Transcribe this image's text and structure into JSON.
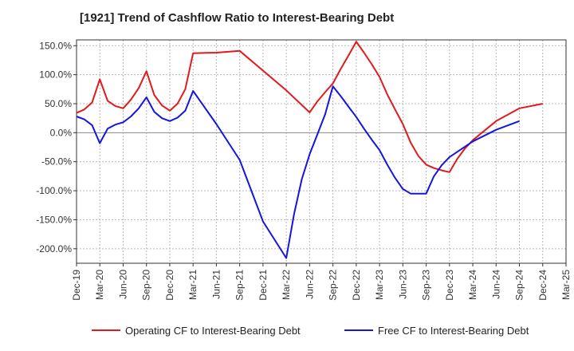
{
  "chart_data": {
    "type": "line",
    "title": "[1921]  Trend of Cashflow Ratio to Interest-Bearing Debt",
    "xlabel": "",
    "ylabel": "",
    "x_tick_labels": [
      "Dec-19",
      "Mar-20",
      "Jun-20",
      "Sep-20",
      "Dec-20",
      "Mar-21",
      "Jun-21",
      "Sep-21",
      "Dec-21",
      "Mar-22",
      "Jun-22",
      "Sep-22",
      "Dec-22",
      "Mar-23",
      "Jun-23",
      "Sep-23",
      "Dec-23",
      "Mar-24",
      "Jun-24",
      "Sep-24",
      "Dec-24",
      "Mar-25"
    ],
    "y_tick_labels": [
      "150.0%",
      "100.0%",
      "50.0%",
      "0.0%",
      "-50.0%",
      "-100.0%",
      "-150.0%",
      "-200.0%"
    ],
    "y_ticks": [
      150,
      100,
      50,
      0,
      -50,
      -100,
      -150,
      -200
    ],
    "ylim": [
      -225,
      160
    ],
    "x_range": [
      "2019-12",
      "2025-03"
    ],
    "grid": true,
    "legend_position": "bottom",
    "series": [
      {
        "name": "Operating CF to Interest-Bearing Debt",
        "color": "#e31a1c",
        "points": [
          [
            "2019-12",
            34
          ],
          [
            "2020-01",
            40
          ],
          [
            "2020-02",
            52
          ],
          [
            "2020-03",
            92
          ],
          [
            "2020-04",
            55
          ],
          [
            "2020-05",
            46
          ],
          [
            "2020-06",
            42
          ],
          [
            "2020-07",
            57
          ],
          [
            "2020-08",
            77
          ],
          [
            "2020-09",
            106
          ],
          [
            "2020-10",
            65
          ],
          [
            "2020-11",
            47
          ],
          [
            "2020-12",
            38
          ],
          [
            "2021-01",
            50
          ],
          [
            "2021-02",
            75
          ],
          [
            "2021-03",
            137
          ],
          [
            "2021-06",
            138
          ],
          [
            "2021-09",
            141
          ],
          [
            "2021-12",
            107
          ],
          [
            "2022-03",
            73
          ],
          [
            "2022-06",
            35
          ],
          [
            "2022-07",
            54
          ],
          [
            "2022-08",
            70
          ],
          [
            "2022-09",
            85
          ],
          [
            "2022-10",
            110
          ],
          [
            "2022-11",
            133
          ],
          [
            "2022-12",
            157
          ],
          [
            "2023-01",
            138
          ],
          [
            "2023-02",
            118
          ],
          [
            "2023-03",
            96
          ],
          [
            "2023-04",
            66
          ],
          [
            "2023-05",
            40
          ],
          [
            "2023-06",
            15
          ],
          [
            "2023-07",
            -17
          ],
          [
            "2023-08",
            -40
          ],
          [
            "2023-09",
            -55
          ],
          [
            "2023-10",
            -61
          ],
          [
            "2023-11",
            -65
          ],
          [
            "2023-12",
            -68
          ],
          [
            "2024-01",
            -45
          ],
          [
            "2024-02",
            -27
          ],
          [
            "2024-03",
            -13
          ],
          [
            "2024-06",
            20
          ],
          [
            "2024-09",
            42
          ],
          [
            "2024-12",
            50
          ]
        ]
      },
      {
        "name": "Free CF to Interest-Bearing Debt",
        "color": "#1515e0",
        "points": [
          [
            "2019-12",
            28
          ],
          [
            "2020-01",
            23
          ],
          [
            "2020-02",
            13
          ],
          [
            "2020-03",
            -18
          ],
          [
            "2020-04",
            7
          ],
          [
            "2020-05",
            14
          ],
          [
            "2020-06",
            18
          ],
          [
            "2020-07",
            28
          ],
          [
            "2020-08",
            42
          ],
          [
            "2020-09",
            61
          ],
          [
            "2020-10",
            36
          ],
          [
            "2020-11",
            25
          ],
          [
            "2020-12",
            20
          ],
          [
            "2021-01",
            26
          ],
          [
            "2021-02",
            38
          ],
          [
            "2021-03",
            72
          ],
          [
            "2021-06",
            15
          ],
          [
            "2021-09",
            -47
          ],
          [
            "2021-12",
            -153
          ],
          [
            "2022-03",
            -216
          ],
          [
            "2022-04",
            -140
          ],
          [
            "2022-05",
            -80
          ],
          [
            "2022-06",
            -37
          ],
          [
            "2022-07",
            -3
          ],
          [
            "2022-08",
            32
          ],
          [
            "2022-09",
            80
          ],
          [
            "2022-10",
            63
          ],
          [
            "2022-11",
            45
          ],
          [
            "2022-12",
            27
          ],
          [
            "2023-01",
            7
          ],
          [
            "2023-02",
            -12
          ],
          [
            "2023-03",
            -30
          ],
          [
            "2023-04",
            -55
          ],
          [
            "2023-05",
            -78
          ],
          [
            "2023-06",
            -97
          ],
          [
            "2023-07",
            -105
          ],
          [
            "2023-09",
            -105
          ],
          [
            "2023-10",
            -75
          ],
          [
            "2023-11",
            -56
          ],
          [
            "2023-12",
            -42
          ],
          [
            "2024-03",
            -15
          ],
          [
            "2024-06",
            5
          ],
          [
            "2024-09",
            20
          ]
        ]
      }
    ]
  }
}
